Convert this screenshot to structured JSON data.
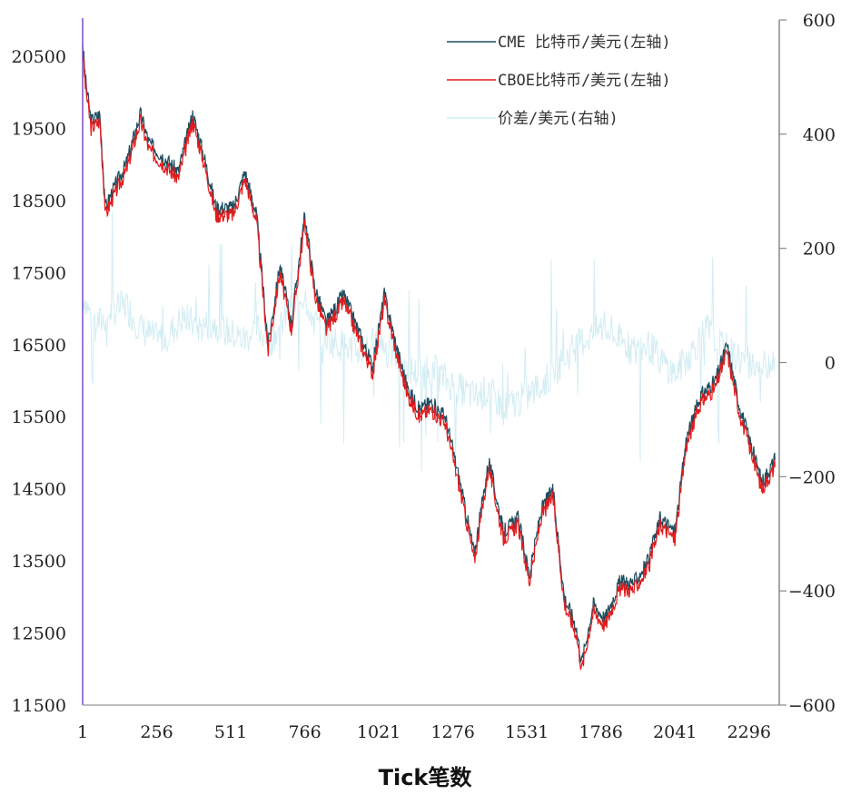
{
  "chart_data": {
    "type": "line",
    "title": "",
    "xlabel": "Tick笔数",
    "ylabel_left": "",
    "ylabel_right": "",
    "x_range": [
      1,
      2400
    ],
    "x_ticks": [
      1,
      256,
      511,
      766,
      1021,
      1276,
      1531,
      1786,
      2041,
      2296
    ],
    "y_left_range": [
      11500,
      20500
    ],
    "y_left_ticks": [
      11500,
      12500,
      13500,
      14500,
      15500,
      16500,
      17500,
      18500,
      19500,
      20500
    ],
    "y_right_range": [
      -600,
      600
    ],
    "y_right_ticks": [
      -600,
      -400,
      -200,
      0,
      200,
      400,
      600
    ],
    "y_right_tick_labels": [
      "−600",
      "−400",
      "−200",
      "0",
      "200",
      "400",
      "600"
    ],
    "grid": false,
    "legend_position": "top-right",
    "legend": [
      "CME 比特币/美元(左轴)",
      "CBOE比特币/美元(左轴)",
      "价差/美元(右轴)"
    ],
    "colors": {
      "cme": "#1f4e5f",
      "cboe": "#e31a1c",
      "spread": "#d2edf3",
      "left_axis": "#7b4fc7",
      "right_axis": "#888888"
    },
    "series": [
      {
        "name": "CME 比特币/美元(左轴)",
        "axis": "left",
        "x": [
          1,
          10,
          30,
          60,
          80,
          100,
          150,
          200,
          230,
          280,
          330,
          380,
          420,
          460,
          520,
          560,
          600,
          640,
          680,
          720,
          766,
          800,
          840,
          900,
          960,
          1000,
          1040,
          1080,
          1120,
          1160,
          1200,
          1250,
          1300,
          1350,
          1400,
          1450,
          1500,
          1540,
          1580,
          1620,
          1660,
          1700,
          1720,
          1760,
          1800,
          1850,
          1900,
          1950,
          1990,
          2041,
          2080,
          2130,
          2180,
          2220,
          2260,
          2296,
          2340,
          2385
        ],
        "values": [
          20700,
          20200,
          19600,
          19700,
          18400,
          18600,
          19000,
          19700,
          19300,
          19100,
          18900,
          19700,
          19100,
          18400,
          18400,
          18900,
          18300,
          16500,
          17600,
          16800,
          18300,
          17300,
          16800,
          17200,
          16600,
          16200,
          17200,
          16500,
          15900,
          15600,
          15700,
          15500,
          14600,
          13600,
          14900,
          13900,
          14100,
          13300,
          14200,
          14500,
          13000,
          12600,
          12100,
          12900,
          12700,
          13200,
          13200,
          13500,
          14100,
          13900,
          15200,
          15800,
          16000,
          16500,
          15700,
          15200,
          14600,
          14900
        ]
      },
      {
        "name": "CBOE比特币/美元(左轴)",
        "axis": "left",
        "x": [
          1,
          10,
          30,
          60,
          80,
          100,
          150,
          200,
          230,
          280,
          330,
          380,
          420,
          460,
          520,
          560,
          600,
          640,
          680,
          720,
          766,
          800,
          840,
          900,
          960,
          1000,
          1040,
          1080,
          1120,
          1160,
          1200,
          1250,
          1300,
          1350,
          1400,
          1450,
          1500,
          1540,
          1580,
          1620,
          1660,
          1700,
          1720,
          1760,
          1800,
          1850,
          1900,
          1950,
          1990,
          2041,
          2080,
          2130,
          2180,
          2220,
          2260,
          2296,
          2340,
          2385
        ],
        "values": [
          20600,
          20100,
          19500,
          19600,
          18300,
          18500,
          18900,
          19600,
          19200,
          19000,
          18800,
          19600,
          19000,
          18300,
          18300,
          18800,
          18200,
          16400,
          17500,
          16700,
          18200,
          17200,
          16700,
          17100,
          16500,
          16100,
          17100,
          16400,
          15800,
          15500,
          15600,
          15400,
          14500,
          13500,
          14800,
          13800,
          14000,
          13200,
          14100,
          14400,
          12900,
          12500,
          12000,
          12800,
          12600,
          13100,
          13100,
          13400,
          14000,
          13800,
          15100,
          15700,
          15900,
          16400,
          15600,
          15100,
          14500,
          14800
        ]
      },
      {
        "name": "价差/美元(右轴)",
        "axis": "right",
        "x": [
          1,
          30,
          60,
          100,
          150,
          200,
          256,
          300,
          350,
          400,
          450,
          511,
          560,
          600,
          650,
          700,
          766,
          800,
          850,
          900,
          950,
          1021,
          1080,
          1150,
          1200,
          1276,
          1350,
          1400,
          1450,
          1531,
          1600,
          1650,
          1700,
          1786,
          1850,
          1900,
          1950,
          2000,
          2041,
          2100,
          2150,
          2200,
          2250,
          2296,
          2340,
          2385
        ],
        "values": [
          120,
          80,
          70,
          90,
          100,
          60,
          40,
          50,
          80,
          60,
          70,
          50,
          40,
          60,
          40,
          80,
          120,
          70,
          40,
          30,
          20,
          40,
          10,
          -20,
          -10,
          -40,
          -60,
          -50,
          -80,
          -60,
          -30,
          0,
          30,
          60,
          40,
          20,
          30,
          0,
          -20,
          20,
          60,
          30,
          10,
          0,
          -10,
          10
        ]
      }
    ]
  }
}
